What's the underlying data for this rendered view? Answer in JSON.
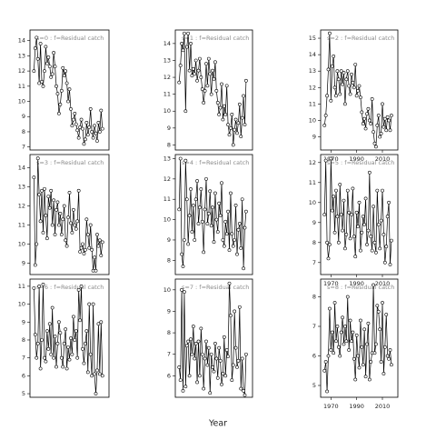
{
  "chart_data": [
    {
      "type": "line",
      "title": "s=0 : f=Residual catch",
      "x": [
        1965,
        1966,
        1967,
        1968,
        1969,
        1970,
        1971,
        1972,
        1973,
        1974,
        1975,
        1976,
        1977,
        1978,
        1979,
        1980,
        1981,
        1982,
        1983,
        1984,
        1985,
        1986,
        1987,
        1988,
        1989,
        1990,
        1991,
        1992,
        1993,
        1994,
        1995,
        1996,
        1997,
        1998,
        1999,
        2000,
        2001,
        2002,
        2003,
        2004,
        2005,
        2006,
        2007,
        2008,
        2009,
        2010,
        2011,
        2012,
        2013,
        2014,
        2015,
        2016,
        2017
      ],
      "values": [
        12.0,
        13.5,
        14.2,
        12.8,
        11.2,
        13.8,
        11.3,
        11.0,
        12.0,
        13.6,
        12.5,
        12.9,
        12.3,
        11.6,
        11.8,
        13.2,
        12.3,
        11.0,
        10.5,
        9.2,
        9.8,
        10.7,
        12.2,
        11.7,
        12.0,
        11.2,
        10.0,
        10.8,
        9.5,
        8.4,
        8.8,
        9.2,
        8.5,
        8.1,
        7.6,
        8.3,
        8.8,
        8.2,
        7.2,
        7.5,
        8.6,
        7.8,
        8.3,
        9.5,
        8.0,
        7.6,
        8.4,
        7.9,
        7.4,
        8.6,
        8.0,
        9.4,
        8.2
      ],
      "xlim": [
        1962,
        2022
      ],
      "ylim": [
        6.8,
        14.7
      ],
      "yticks": [
        7,
        8,
        9,
        10,
        11,
        12,
        13,
        14
      ]
    },
    {
      "type": "line",
      "title": "s=3 : f=Residual catch",
      "x": [
        1965,
        1966,
        1967,
        1968,
        1969,
        1970,
        1971,
        1972,
        1973,
        1974,
        1975,
        1976,
        1977,
        1978,
        1979,
        1980,
        1981,
        1982,
        1983,
        1984,
        1985,
        1986,
        1987,
        1988,
        1989,
        1990,
        1991,
        1992,
        1993,
        1994,
        1995,
        1996,
        1997,
        1998,
        1999,
        2000,
        2001,
        2002,
        2003,
        2004,
        2005,
        2006,
        2007,
        2008,
        2009,
        2010,
        2011,
        2012,
        2013,
        2014,
        2015,
        2016,
        2017
      ],
      "values": [
        13.5,
        8.9,
        10.0,
        14.5,
        12.6,
        11.2,
        12.8,
        10.6,
        12.9,
        11.5,
        10.3,
        12.5,
        11.9,
        12.8,
        11.0,
        12.3,
        10.5,
        11.8,
        12.2,
        11.0,
        11.6,
        10.5,
        11.3,
        12.0,
        10.2,
        9.9,
        11.4,
        12.7,
        11.1,
        10.6,
        11.8,
        11.0,
        10.8,
        11.2,
        12.8,
        9.6,
        9.8,
        10.0,
        9.5,
        9.7,
        11.3,
        10.5,
        9.8,
        11.0,
        9.7,
        8.6,
        9.3,
        8.6,
        10.5,
        9.9,
        10.2,
        9.4,
        10.1
      ],
      "xlim": [
        1962,
        2022
      ],
      "ylim": [
        8.4,
        14.7
      ],
      "yticks": [
        9,
        10,
        11,
        12,
        13,
        14
      ]
    },
    {
      "type": "line",
      "title": "s=6 : f=Residual catch",
      "x": [
        1965,
        1966,
        1967,
        1968,
        1969,
        1970,
        1971,
        1972,
        1973,
        1974,
        1975,
        1976,
        1977,
        1978,
        1979,
        1980,
        1981,
        1982,
        1983,
        1984,
        1985,
        1986,
        1987,
        1988,
        1989,
        1990,
        1991,
        1992,
        1993,
        1994,
        1995,
        1996,
        1997,
        1998,
        1999,
        2000,
        2001,
        2002,
        2003,
        2004,
        2005,
        2006,
        2007,
        2008,
        2009,
        2010,
        2011,
        2012,
        2013,
        2014,
        2015,
        2016,
        2017
      ],
      "values": [
        10.9,
        8.3,
        7.0,
        7.8,
        11.0,
        6.4,
        8.0,
        11.1,
        7.0,
        6.8,
        8.5,
        7.5,
        8.9,
        7.2,
        9.8,
        7.0,
        8.2,
        6.5,
        7.8,
        9.0,
        8.4,
        7.0,
        6.5,
        7.8,
        8.6,
        6.4,
        7.6,
        6.9,
        8.1,
        7.2,
        9.3,
        8.0,
        8.5,
        7.0,
        10.8,
        9.1,
        11.0,
        7.5,
        6.7,
        7.8,
        8.5,
        6.2,
        10.0,
        7.2,
        6.0,
        10.0,
        6.1,
        5.0,
        6.3,
        8.9,
        6.1,
        9.0,
        6.0
      ],
      "xlim": [
        1962,
        2022
      ],
      "ylim": [
        4.8,
        11.4
      ],
      "yticks": [
        5,
        6,
        7,
        8,
        9,
        10,
        11
      ]
    },
    {
      "type": "line",
      "title": "s=1 : f=Residual catch",
      "x": [
        1965,
        1966,
        1967,
        1968,
        1969,
        1970,
        1971,
        1972,
        1973,
        1974,
        1975,
        1976,
        1977,
        1978,
        1979,
        1980,
        1981,
        1982,
        1983,
        1984,
        1985,
        1986,
        1987,
        1988,
        1989,
        1990,
        1991,
        1992,
        1993,
        1994,
        1995,
        1996,
        1997,
        1998,
        1999,
        2000,
        2001,
        2002,
        2003,
        2004,
        2005,
        2006,
        2007,
        2008,
        2009,
        2010,
        2011,
        2012,
        2013,
        2014,
        2015,
        2016,
        2017
      ],
      "values": [
        11.7,
        12.7,
        14.0,
        13.6,
        14.6,
        10.0,
        13.8,
        14.6,
        12.4,
        14.0,
        12.1,
        12.5,
        12.2,
        13.0,
        11.8,
        12.4,
        13.1,
        12.0,
        11.3,
        10.5,
        11.2,
        12.8,
        11.5,
        13.1,
        12.2,
        11.0,
        12.4,
        11.9,
        12.9,
        11.2,
        10.5,
        9.8,
        10.2,
        11.6,
        9.5,
        10.3,
        9.8,
        11.5,
        9.2,
        8.6,
        9.0,
        9.8,
        8.0,
        8.9,
        9.5,
        8.7,
        9.3,
        10.4,
        8.5,
        9.6,
        10.9,
        9.2,
        11.8
      ],
      "xlim": [
        1962,
        2022
      ],
      "ylim": [
        7.7,
        14.8
      ],
      "yticks": [
        8,
        9,
        10,
        11,
        12,
        13,
        14
      ]
    },
    {
      "type": "line",
      "title": "s=4 : f=Residual catch",
      "x": [
        1965,
        1966,
        1967,
        1968,
        1969,
        1970,
        1971,
        1972,
        1973,
        1974,
        1975,
        1976,
        1977,
        1978,
        1979,
        1980,
        1981,
        1982,
        1983,
        1984,
        1985,
        1986,
        1987,
        1988,
        1989,
        1990,
        1991,
        1992,
        1993,
        1994,
        1995,
        1996,
        1997,
        1998,
        1999,
        2000,
        2001,
        2002,
        2003,
        2004,
        2005,
        2006,
        2007,
        2008,
        2009,
        2010,
        2011,
        2012,
        2013,
        2014,
        2015,
        2016,
        2017
      ],
      "values": [
        10.5,
        13.0,
        8.3,
        7.7,
        9.0,
        12.9,
        11.0,
        8.8,
        10.2,
        11.5,
        9.4,
        10.7,
        9.0,
        11.0,
        11.9,
        9.8,
        10.6,
        11.5,
        9.9,
        8.4,
        10.5,
        12.0,
        9.8,
        10.3,
        11.4,
        9.7,
        10.6,
        8.9,
        11.3,
        10.0,
        9.4,
        10.8,
        10.2,
        11.8,
        9.0,
        8.7,
        9.9,
        9.3,
        10.4,
        8.5,
        11.3,
        9.3,
        8.7,
        9.0,
        10.7,
        8.3,
        9.5,
        9.8,
        8.6,
        11.0,
        7.6,
        9.6,
        10.4
      ],
      "xlim": [
        1962,
        2022
      ],
      "ylim": [
        7.3,
        13.2
      ],
      "yticks": [
        8,
        9,
        10,
        11,
        12,
        13
      ]
    },
    {
      "type": "line",
      "title": "s=7 : f=Residual catch",
      "x": [
        1965,
        1966,
        1967,
        1968,
        1969,
        1970,
        1971,
        1972,
        1973,
        1974,
        1975,
        1976,
        1977,
        1978,
        1979,
        1980,
        1981,
        1982,
        1983,
        1984,
        1985,
        1986,
        1987,
        1988,
        1989,
        1990,
        1991,
        1992,
        1993,
        1994,
        1995,
        1996,
        1997,
        1998,
        1999,
        2000,
        2001,
        2002,
        2003,
        2004,
        2005,
        2006,
        2007,
        2008,
        2009,
        2010,
        2011,
        2012,
        2013,
        2014,
        2015,
        2016,
        2017
      ],
      "values": [
        6.4,
        5.8,
        10.0,
        5.3,
        9.9,
        5.5,
        7.4,
        7.6,
        6.0,
        7.7,
        7.0,
        8.3,
        6.8,
        7.5,
        5.7,
        7.6,
        6.0,
        8.2,
        7.0,
        5.4,
        6.8,
        7.6,
        6.5,
        7.3,
        5.2,
        7.0,
        6.4,
        6.2,
        7.5,
        6.8,
        5.9,
        7.3,
        6.7,
        5.6,
        6.1,
        7.8,
        6.0,
        7.2,
        6.9,
        10.3,
        8.8,
        5.8,
        6.5,
        9.0,
        7.3,
        6.4,
        6.7,
        9.2,
        5.4,
        6.8,
        5.3,
        5.1,
        7.0
      ],
      "xlim": [
        1962,
        2022
      ],
      "ylim": [
        5.0,
        10.5
      ],
      "yticks": [
        6,
        7,
        8,
        9,
        10
      ]
    },
    {
      "type": "line",
      "title": "s=2 : f=Residual catch",
      "x": [
        1965,
        1966,
        1967,
        1968,
        1969,
        1970,
        1971,
        1972,
        1973,
        1974,
        1975,
        1976,
        1977,
        1978,
        1979,
        1980,
        1981,
        1982,
        1983,
        1984,
        1985,
        1986,
        1987,
        1988,
        1989,
        1990,
        1991,
        1992,
        1993,
        1994,
        1995,
        1996,
        1997,
        1998,
        1999,
        2000,
        2001,
        2002,
        2003,
        2004,
        2005,
        2006,
        2007,
        2008,
        2009,
        2010,
        2011,
        2012,
        2013,
        2014,
        2015,
        2016,
        2017
      ],
      "values": [
        9.7,
        10.3,
        11.5,
        13.1,
        15.3,
        11.2,
        13.3,
        13.9,
        12.0,
        11.5,
        13.0,
        12.5,
        11.6,
        13.0,
        12.2,
        12.9,
        11.0,
        12.5,
        13.0,
        12.1,
        11.6,
        12.8,
        12.3,
        12.0,
        13.4,
        11.5,
        11.8,
        12.1,
        11.4,
        10.5,
        9.8,
        10.1,
        9.5,
        10.4,
        10.7,
        10.0,
        9.8,
        11.3,
        9.3,
        8.6,
        8.4,
        9.7,
        10.3,
        9.0,
        9.2,
        11.0,
        9.6,
        10.1,
        9.4,
        10.2,
        10.0,
        9.4,
        10.3
      ],
      "xlim": [
        1962,
        2022
      ],
      "ylim": [
        8.2,
        15.5
      ],
      "yticks": [
        9,
        10,
        11,
        12,
        13,
        14,
        15
      ],
      "xticks": [
        1970,
        1990,
        2010
      ]
    },
    {
      "type": "line",
      "title": "s=5 : f=Residual catch",
      "x": [
        1965,
        1966,
        1967,
        1968,
        1969,
        1970,
        1971,
        1972,
        1973,
        1974,
        1975,
        1976,
        1977,
        1978,
        1979,
        1980,
        1981,
        1982,
        1983,
        1984,
        1985,
        1986,
        1987,
        1988,
        1989,
        1990,
        1991,
        1992,
        1993,
        1994,
        1995,
        1996,
        1997,
        1998,
        1999,
        2000,
        2001,
        2002,
        2003,
        2004,
        2005,
        2006,
        2007,
        2008,
        2009,
        2010,
        2011,
        2012,
        2013,
        2014,
        2015,
        2016,
        2017
      ],
      "values": [
        9.4,
        12.1,
        8.0,
        7.2,
        7.9,
        12.2,
        9.6,
        10.3,
        8.5,
        10.6,
        9.3,
        8.0,
        10.9,
        9.4,
        8.6,
        10.1,
        7.7,
        8.4,
        10.6,
        9.5,
        8.2,
        9.4,
        10.7,
        8.3,
        7.3,
        9.5,
        8.8,
        10.0,
        7.6,
        8.5,
        9.3,
        8.9,
        10.2,
        7.9,
        8.6,
        11.5,
        8.3,
        7.6,
        9.8,
        8.0,
        7.5,
        10.6,
        8.9,
        7.7,
        9.1,
        10.6,
        8.4,
        7.0,
        7.8,
        9.3,
        10.0,
        6.9,
        8.1
      ],
      "xlim": [
        1962,
        2022
      ],
      "ylim": [
        6.4,
        12.4
      ],
      "yticks": [
        7,
        8,
        9,
        10,
        11,
        12
      ],
      "xticks": [
        1970,
        1990,
        2010
      ],
      "x_label": "Year"
    },
    {
      "type": "line",
      "title": "s=8 : f=Residual catch",
      "x": [
        1965,
        1966,
        1967,
        1968,
        1969,
        1970,
        1971,
        1972,
        1973,
        1974,
        1975,
        1976,
        1977,
        1978,
        1979,
        1980,
        1981,
        1982,
        1983,
        1984,
        1985,
        1986,
        1987,
        1988,
        1989,
        1990,
        1991,
        1992,
        1993,
        1994,
        1995,
        1996,
        1997,
        1998,
        1999,
        2000,
        2001,
        2002,
        2003,
        2004,
        2005,
        2006,
        2007,
        2008,
        2009,
        2010,
        2011,
        2012,
        2013,
        2014,
        2015,
        2016,
        2017
      ],
      "values": [
        5.5,
        5.8,
        4.8,
        6.0,
        7.6,
        6.2,
        6.8,
        6.1,
        7.8,
        6.5,
        7.0,
        6.3,
        6.0,
        6.8,
        7.3,
        6.4,
        7.0,
        6.5,
        8.0,
        6.2,
        7.2,
        6.5,
        6.8,
        5.9,
        5.2,
        6.7,
        6.0,
        5.6,
        7.2,
        6.3,
        5.7,
        6.9,
        5.3,
        6.4,
        7.1,
        5.2,
        5.8,
        6.1,
        8.4,
        6.1,
        6.4,
        7.7,
        7.5,
        6.9,
        5.8,
        7.8,
        5.4,
        6.3,
        7.4,
        6.0,
        5.9,
        6.2,
        5.7
      ],
      "xlim": [
        1962,
        2022
      ],
      "ylim": [
        4.6,
        8.6
      ],
      "yticks": [
        5,
        6,
        7,
        8
      ],
      "xticks": [
        1970,
        1990,
        2010
      ]
    }
  ]
}
